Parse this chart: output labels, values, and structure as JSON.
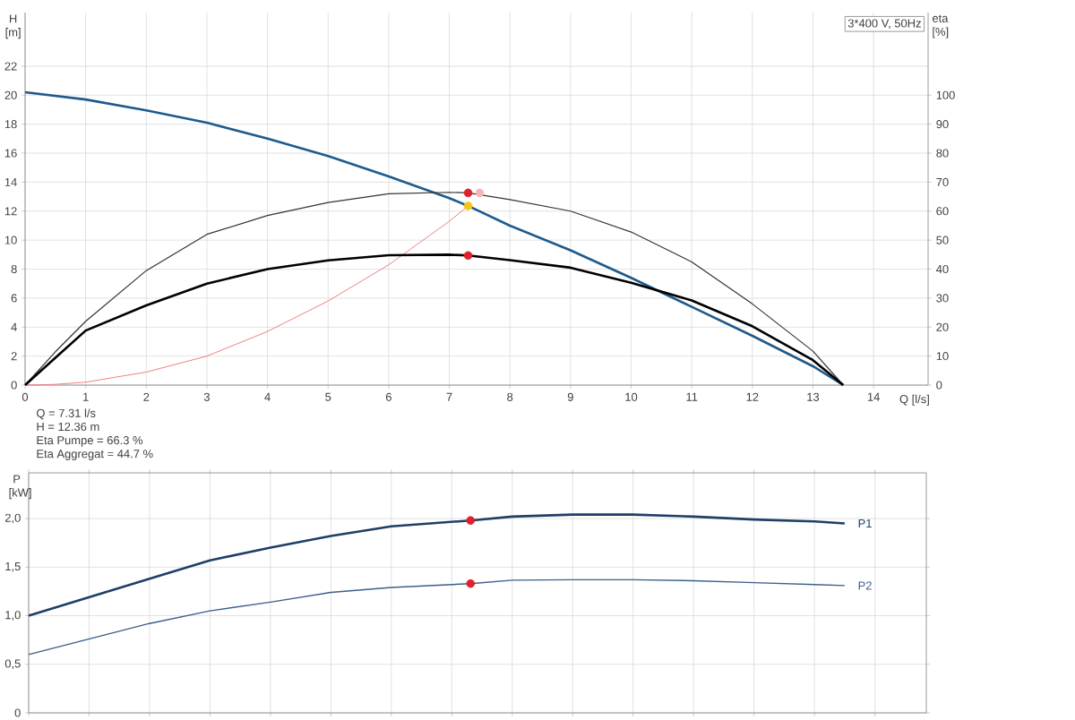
{
  "chart_data": [
    {
      "type": "line",
      "xlabel": "Q [l/s]",
      "ylabel": "H [m]",
      "y2label": "eta [%]",
      "xlim": [
        0,
        14.9
      ],
      "xticks": [
        0,
        1,
        2,
        3,
        4,
        5,
        6,
        7,
        8,
        9,
        10,
        11,
        12,
        13,
        14
      ],
      "ylim": [
        0,
        25.7
      ],
      "yticks": [
        0,
        2,
        4,
        6,
        8,
        10,
        12,
        14,
        16,
        18,
        20,
        22
      ],
      "y2lim": [
        0,
        128.5
      ],
      "y2ticks": [
        0,
        10,
        20,
        30,
        40,
        50,
        60,
        70,
        80,
        90,
        100
      ],
      "grid": true,
      "annotations": [
        "3*400 V, 50Hz",
        "Q = 7.31 l/s",
        "H = 12.36 m",
        "Eta Pumpe = 66.3 %",
        "Eta Aggregat = 44.7 %"
      ],
      "series": [
        {
          "color": "#1f5a8c",
          "x": [
            0,
            1,
            2,
            3,
            4,
            5,
            6,
            7,
            7.31,
            8,
            9,
            10,
            11,
            12,
            13,
            13.5
          ],
          "values": [
            20.2,
            19.7,
            18.95,
            18.1,
            17.0,
            15.8,
            14.4,
            12.9,
            12.36,
            11.0,
            9.3,
            7.4,
            5.4,
            3.4,
            1.3,
            0
          ]
        },
        {
          "color": "#333333",
          "axis": "y2",
          "x": [
            0,
            0.5,
            1,
            2,
            3,
            4,
            5,
            6,
            7,
            7.31,
            8,
            9,
            10,
            11,
            12,
            13,
            13.5
          ],
          "values": [
            0,
            11.5,
            22,
            39.5,
            52,
            58.5,
            63,
            66,
            66.5,
            66.3,
            64,
            60,
            52.8,
            42.5,
            28,
            11.7,
            0
          ]
        },
        {
          "color": "#000000",
          "axis": "y2",
          "x": [
            0,
            0.5,
            1,
            2,
            3,
            4,
            5,
            6,
            7,
            7.31,
            8,
            9,
            10,
            11,
            12,
            13,
            13.5
          ],
          "values": [
            0,
            9.4,
            18.8,
            27.5,
            35,
            40,
            43,
            44.8,
            45,
            44.7,
            43.1,
            40.5,
            35.3,
            29.2,
            20.3,
            8.6,
            0
          ]
        },
        {
          "color": "#f08080",
          "x": [
            0,
            0.5,
            1,
            2,
            3,
            4,
            5,
            6,
            7,
            7.31
          ],
          "values": [
            0,
            0.05,
            0.2,
            0.9,
            2.0,
            3.7,
            5.8,
            8.3,
            11.3,
            12.36
          ]
        },
        {
          "type": "scatter",
          "marker": "circle",
          "color": "#f5c518",
          "x": [
            7.31
          ],
          "values": [
            12.36
          ]
        },
        {
          "type": "scatter",
          "marker": "circle",
          "axis": "y2",
          "color": "#e0202a",
          "x": [
            7.31,
            7.31
          ],
          "values": [
            66.3,
            44.7
          ]
        },
        {
          "type": "scatter",
          "marker": "circle",
          "axis": "y2",
          "color": "#f4b6b6",
          "x": [
            7.5
          ],
          "values": [
            66.3
          ]
        }
      ]
    },
    {
      "type": "line",
      "ylabel": "P [kW]",
      "tick_labels": "y",
      "xlim": [
        0,
        14.85
      ],
      "xticks": [
        0,
        1,
        2,
        3,
        4,
        5,
        6,
        7,
        8,
        9,
        10,
        11,
        12,
        13,
        14
      ],
      "ylim": [
        0,
        2.47
      ],
      "yticks": [
        0,
        {
          "value": 0.5,
          "label": "0,5"
        },
        {
          "value": 1.0,
          "label": "1,0"
        },
        {
          "value": 1.5,
          "label": "1,5"
        },
        {
          "value": 2.0,
          "label": "2,0"
        }
      ],
      "grid": true,
      "series": [
        {
          "name": "P1",
          "color": "#1f3f66",
          "x": [
            0,
            1,
            2,
            3,
            4,
            5,
            6,
            7.31,
            8,
            9,
            10,
            11,
            12,
            13,
            13.5
          ],
          "values": [
            1.0,
            1.19,
            1.38,
            1.57,
            1.7,
            1.82,
            1.92,
            1.98,
            2.02,
            2.04,
            2.04,
            2.02,
            1.99,
            1.97,
            1.95
          ]
        },
        {
          "name": "P2",
          "color": "#3b5f8a",
          "x": [
            0,
            1,
            2,
            3,
            4,
            5,
            6,
            7.31,
            8,
            9,
            10,
            11,
            12,
            13,
            13.5
          ],
          "values": [
            0.6,
            0.76,
            0.92,
            1.05,
            1.14,
            1.24,
            1.29,
            1.33,
            1.365,
            1.37,
            1.37,
            1.36,
            1.34,
            1.32,
            1.31
          ]
        },
        {
          "type": "scatter",
          "marker": "circle",
          "color": "#e0202a",
          "x": [
            7.31,
            7.31
          ],
          "values": [
            1.98,
            1.33
          ]
        }
      ]
    }
  ]
}
